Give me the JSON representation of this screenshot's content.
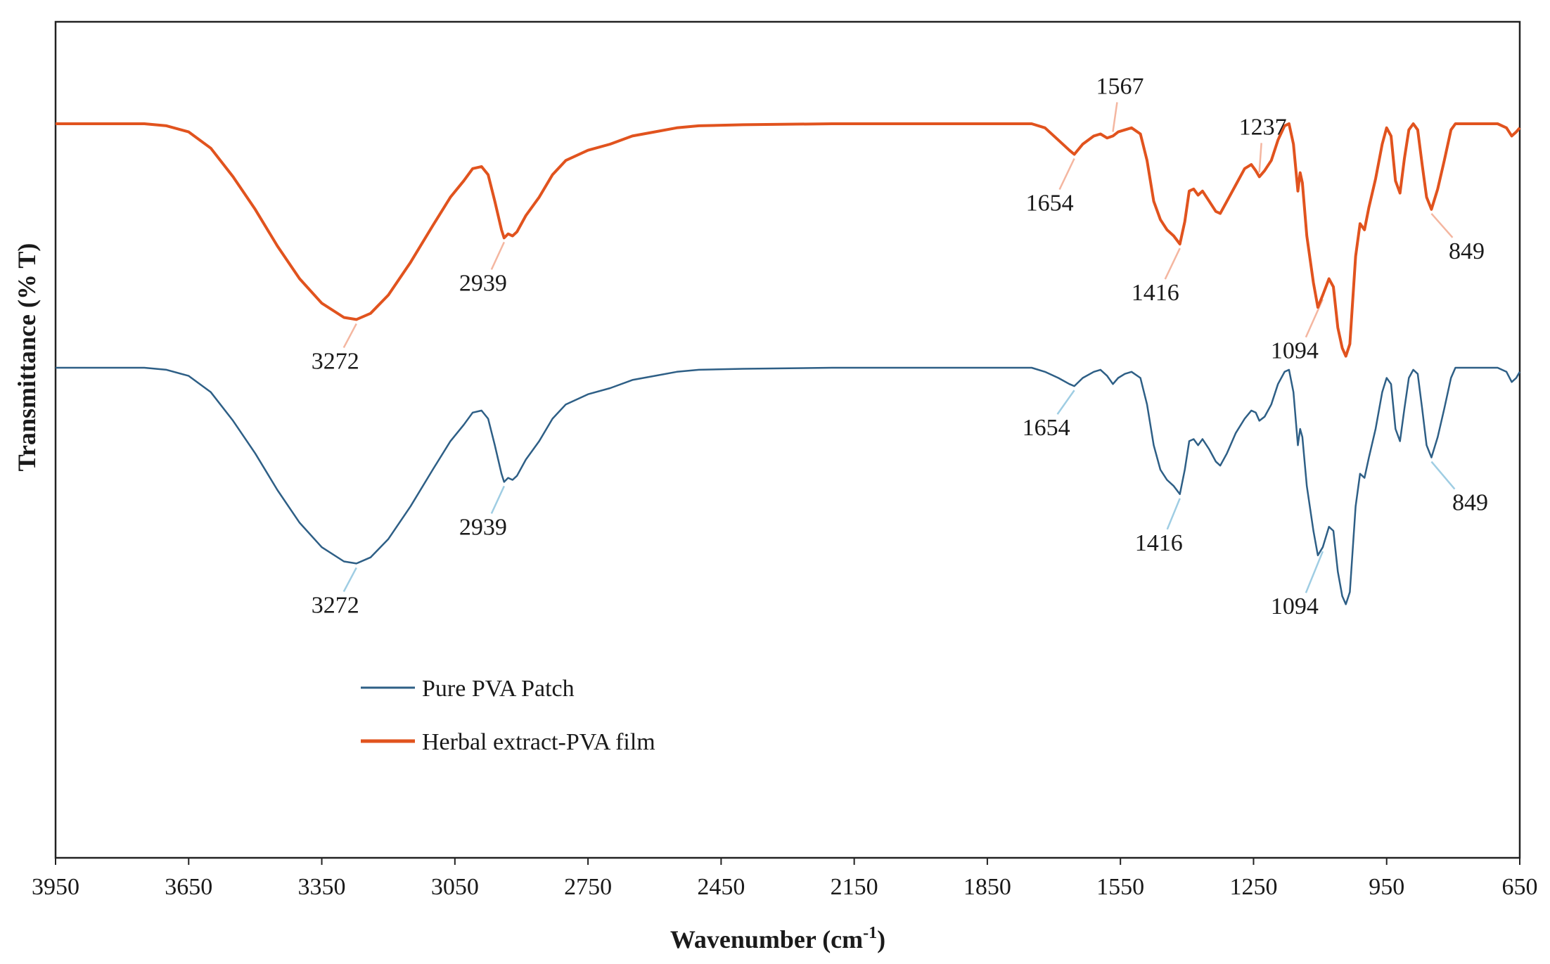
{
  "chart_data": {
    "type": "line",
    "title": "",
    "xlabel": "Wavenumber (cm",
    "xlabel_sup": "-1",
    "xlabel_close": ")",
    "ylabel": "Transmittance (% T)",
    "xlim": [
      3950,
      650
    ],
    "x_reversed": true,
    "y_ticks_shown": false,
    "grid": false,
    "legend_position": "lower-left inside plot",
    "x_ticks": [
      "3950",
      "3650",
      "3350",
      "3050",
      "2750",
      "2450",
      "2150",
      "1850",
      "1550",
      "1250",
      "950",
      "650"
    ],
    "series": [
      {
        "name": "Pure PVA Patch",
        "color": "#2e5f86",
        "offset": 0,
        "points": [
          [
            3950,
            0
          ],
          [
            3750,
            0
          ],
          [
            3700,
            -1
          ],
          [
            3650,
            -4
          ],
          [
            3600,
            -12
          ],
          [
            3550,
            -26
          ],
          [
            3500,
            -42
          ],
          [
            3450,
            -60
          ],
          [
            3400,
            -76
          ],
          [
            3350,
            -88
          ],
          [
            3300,
            -95
          ],
          [
            3272,
            -96
          ],
          [
            3240,
            -93
          ],
          [
            3200,
            -84
          ],
          [
            3150,
            -68
          ],
          [
            3100,
            -50
          ],
          [
            3060,
            -36
          ],
          [
            3030,
            -28
          ],
          [
            3010,
            -22
          ],
          [
            2990,
            -21
          ],
          [
            2975,
            -25
          ],
          [
            2960,
            -38
          ],
          [
            2945,
            -52
          ],
          [
            2939,
            -56
          ],
          [
            2930,
            -54
          ],
          [
            2920,
            -55
          ],
          [
            2910,
            -53
          ],
          [
            2890,
            -45
          ],
          [
            2860,
            -36
          ],
          [
            2830,
            -25
          ],
          [
            2800,
            -18
          ],
          [
            2750,
            -13
          ],
          [
            2700,
            -10
          ],
          [
            2650,
            -6
          ],
          [
            2600,
            -4
          ],
          [
            2550,
            -2
          ],
          [
            2500,
            -1
          ],
          [
            2400,
            -0.5
          ],
          [
            2200,
            0
          ],
          [
            1800,
            0
          ],
          [
            1750,
            0
          ],
          [
            1720,
            -2
          ],
          [
            1690,
            -5
          ],
          [
            1665,
            -8
          ],
          [
            1654,
            -9
          ],
          [
            1635,
            -5
          ],
          [
            1610,
            -2
          ],
          [
            1595,
            -1
          ],
          [
            1580,
            -4
          ],
          [
            1567,
            -8
          ],
          [
            1555,
            -5
          ],
          [
            1540,
            -3
          ],
          [
            1525,
            -2
          ],
          [
            1505,
            -5
          ],
          [
            1490,
            -18
          ],
          [
            1475,
            -38
          ],
          [
            1460,
            -50
          ],
          [
            1445,
            -55
          ],
          [
            1430,
            -58
          ],
          [
            1416,
            -62
          ],
          [
            1405,
            -50
          ],
          [
            1395,
            -36
          ],
          [
            1385,
            -35
          ],
          [
            1375,
            -38
          ],
          [
            1365,
            -35
          ],
          [
            1350,
            -40
          ],
          [
            1335,
            -46
          ],
          [
            1325,
            -48
          ],
          [
            1310,
            -42
          ],
          [
            1290,
            -32
          ],
          [
            1270,
            -25
          ],
          [
            1255,
            -21
          ],
          [
            1245,
            -22
          ],
          [
            1237,
            -26
          ],
          [
            1225,
            -24
          ],
          [
            1210,
            -18
          ],
          [
            1195,
            -8
          ],
          [
            1180,
            -2
          ],
          [
            1170,
            -1
          ],
          [
            1160,
            -12
          ],
          [
            1150,
            -38
          ],
          [
            1145,
            -30
          ],
          [
            1140,
            -34
          ],
          [
            1130,
            -58
          ],
          [
            1115,
            -80
          ],
          [
            1105,
            -92
          ],
          [
            1094,
            -88
          ],
          [
            1080,
            -78
          ],
          [
            1070,
            -80
          ],
          [
            1060,
            -100
          ],
          [
            1050,
            -112
          ],
          [
            1042,
            -116
          ],
          [
            1033,
            -110
          ],
          [
            1020,
            -68
          ],
          [
            1010,
            -52
          ],
          [
            1000,
            -54
          ],
          [
            990,
            -44
          ],
          [
            975,
            -30
          ],
          [
            960,
            -12
          ],
          [
            950,
            -5
          ],
          [
            940,
            -8
          ],
          [
            930,
            -30
          ],
          [
            920,
            -36
          ],
          [
            910,
            -20
          ],
          [
            900,
            -5
          ],
          [
            890,
            -1
          ],
          [
            880,
            -3
          ],
          [
            870,
            -20
          ],
          [
            860,
            -38
          ],
          [
            849,
            -44
          ],
          [
            835,
            -34
          ],
          [
            820,
            -20
          ],
          [
            805,
            -5
          ],
          [
            795,
            0
          ],
          [
            750,
            0
          ],
          [
            700,
            0
          ],
          [
            680,
            -2
          ],
          [
            668,
            -7
          ],
          [
            658,
            -5
          ],
          [
            650,
            -2
          ]
        ],
        "annotations": [
          {
            "label": "3272",
            "x": 3272
          },
          {
            "label": "2939",
            "x": 2939
          },
          {
            "label": "1654",
            "x": 1654
          },
          {
            "label": "1416",
            "x": 1416
          },
          {
            "label": "1094",
            "x": 1094
          },
          {
            "label": "849",
            "x": 849
          }
        ]
      },
      {
        "name": "Herbal extract-PVA film",
        "color": "#e1531e",
        "offset": 100,
        "points": [
          [
            3950,
            0
          ],
          [
            3750,
            0
          ],
          [
            3700,
            -1
          ],
          [
            3650,
            -4
          ],
          [
            3600,
            -12
          ],
          [
            3550,
            -26
          ],
          [
            3500,
            -42
          ],
          [
            3450,
            -60
          ],
          [
            3400,
            -76
          ],
          [
            3350,
            -88
          ],
          [
            3300,
            -95
          ],
          [
            3272,
            -96
          ],
          [
            3240,
            -93
          ],
          [
            3200,
            -84
          ],
          [
            3150,
            -68
          ],
          [
            3100,
            -50
          ],
          [
            3060,
            -36
          ],
          [
            3030,
            -28
          ],
          [
            3010,
            -22
          ],
          [
            2990,
            -21
          ],
          [
            2975,
            -25
          ],
          [
            2960,
            -38
          ],
          [
            2945,
            -52
          ],
          [
            2939,
            -56
          ],
          [
            2930,
            -54
          ],
          [
            2920,
            -55
          ],
          [
            2910,
            -53
          ],
          [
            2890,
            -45
          ],
          [
            2860,
            -36
          ],
          [
            2830,
            -25
          ],
          [
            2800,
            -18
          ],
          [
            2750,
            -13
          ],
          [
            2700,
            -10
          ],
          [
            2650,
            -6
          ],
          [
            2600,
            -4
          ],
          [
            2550,
            -2
          ],
          [
            2500,
            -1
          ],
          [
            2400,
            -0.5
          ],
          [
            2200,
            0
          ],
          [
            1800,
            0
          ],
          [
            1750,
            0
          ],
          [
            1720,
            -2
          ],
          [
            1690,
            -8
          ],
          [
            1665,
            -13
          ],
          [
            1654,
            -15
          ],
          [
            1635,
            -10
          ],
          [
            1610,
            -6
          ],
          [
            1595,
            -5
          ],
          [
            1580,
            -7
          ],
          [
            1567,
            -6
          ],
          [
            1555,
            -4
          ],
          [
            1540,
            -3
          ],
          [
            1525,
            -2
          ],
          [
            1505,
            -5
          ],
          [
            1490,
            -18
          ],
          [
            1475,
            -38
          ],
          [
            1460,
            -47
          ],
          [
            1445,
            -52
          ],
          [
            1430,
            -55
          ],
          [
            1416,
            -59
          ],
          [
            1405,
            -48
          ],
          [
            1395,
            -33
          ],
          [
            1385,
            -32
          ],
          [
            1375,
            -35
          ],
          [
            1365,
            -33
          ],
          [
            1350,
            -38
          ],
          [
            1335,
            -43
          ],
          [
            1325,
            -44
          ],
          [
            1310,
            -38
          ],
          [
            1290,
            -30
          ],
          [
            1270,
            -22
          ],
          [
            1255,
            -20
          ],
          [
            1245,
            -23
          ],
          [
            1237,
            -26
          ],
          [
            1225,
            -23
          ],
          [
            1210,
            -18
          ],
          [
            1195,
            -8
          ],
          [
            1180,
            -1
          ],
          [
            1170,
            0
          ],
          [
            1160,
            -10
          ],
          [
            1150,
            -33
          ],
          [
            1145,
            -24
          ],
          [
            1140,
            -29
          ],
          [
            1130,
            -55
          ],
          [
            1115,
            -78
          ],
          [
            1105,
            -90
          ],
          [
            1094,
            -84
          ],
          [
            1080,
            -76
          ],
          [
            1070,
            -80
          ],
          [
            1060,
            -100
          ],
          [
            1050,
            -110
          ],
          [
            1042,
            -114
          ],
          [
            1033,
            -108
          ],
          [
            1020,
            -65
          ],
          [
            1010,
            -49
          ],
          [
            1000,
            -52
          ],
          [
            990,
            -41
          ],
          [
            975,
            -27
          ],
          [
            960,
            -10
          ],
          [
            950,
            -2
          ],
          [
            940,
            -6
          ],
          [
            930,
            -28
          ],
          [
            920,
            -34
          ],
          [
            910,
            -17
          ],
          [
            900,
            -3
          ],
          [
            890,
            0
          ],
          [
            880,
            -3
          ],
          [
            870,
            -20
          ],
          [
            860,
            -36
          ],
          [
            849,
            -42
          ],
          [
            835,
            -32
          ],
          [
            820,
            -18
          ],
          [
            805,
            -3
          ],
          [
            795,
            0
          ],
          [
            750,
            0
          ],
          [
            700,
            0
          ],
          [
            680,
            -2
          ],
          [
            668,
            -6
          ],
          [
            658,
            -4
          ],
          [
            650,
            -2
          ]
        ],
        "annotations": [
          {
            "label": "3272",
            "x": 3272
          },
          {
            "label": "2939",
            "x": 2939
          },
          {
            "label": "1654",
            "x": 1654
          },
          {
            "label": "1567",
            "x": 1567
          },
          {
            "label": "1416",
            "x": 1416
          },
          {
            "label": "1237",
            "x": 1237
          },
          {
            "label": "1094",
            "x": 1094
          },
          {
            "label": "849",
            "x": 849
          }
        ]
      }
    ]
  }
}
